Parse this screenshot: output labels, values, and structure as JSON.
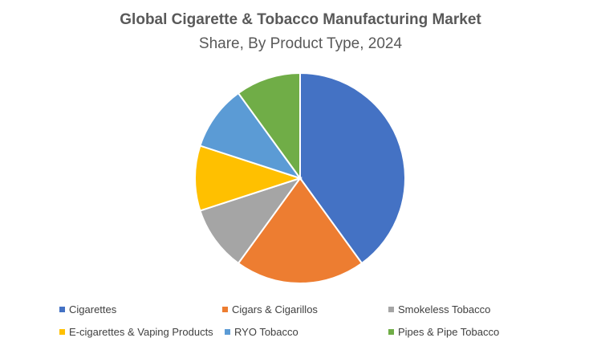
{
  "chart_data": {
    "type": "pie",
    "title": "Global Cigarette & Tobacco Manufacturing Market",
    "subtitle": "Share, By Product Type, 2024",
    "legend_position": "bottom",
    "categories": [
      "Cigarettes",
      "Cigars & Cigarillos",
      "Smokeless Tobacco",
      "E-cigarettes & Vaping Products",
      "RYO Tobacco",
      "Pipes & Pipe Tobacco"
    ],
    "values": [
      40,
      20,
      10,
      10,
      10,
      10
    ],
    "colors": [
      "#4472C4",
      "#ED7D31",
      "#A5A5A5",
      "#FFC000",
      "#5B9BD5",
      "#70AD47"
    ]
  }
}
